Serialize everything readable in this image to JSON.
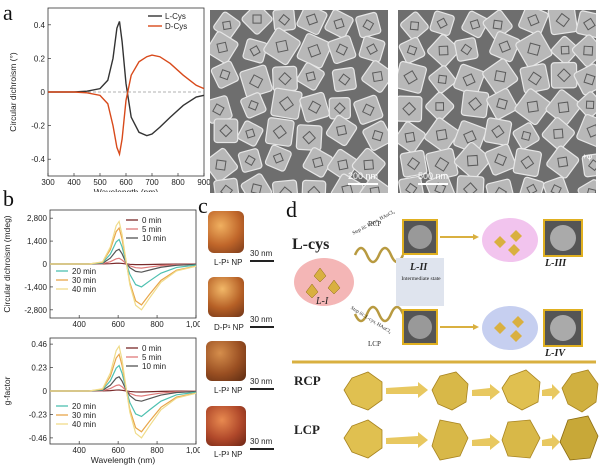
{
  "panels": {
    "a": "a",
    "b": "b",
    "c": "c",
    "d": "d"
  },
  "chart_data": [
    {
      "type": "line",
      "id": "a",
      "xlabel": "Wavelength (nm)",
      "ylabel": "Circular dichroism (°)",
      "xlim": [
        300,
        900
      ],
      "ylim": [
        -0.5,
        0.5
      ],
      "xticks": [
        "300",
        "400",
        "500",
        "600",
        "700",
        "800",
        "900"
      ],
      "yticks": [
        "0.4",
        "0.2",
        "0",
        "-0.2",
        "-0.4"
      ],
      "legend": [
        "L-Cys",
        "D-Cys"
      ],
      "series": [
        {
          "name": "L-Cys",
          "color": "#333333",
          "x": [
            300,
            400,
            450,
            500,
            530,
            550,
            565,
            575,
            585,
            600,
            620,
            650,
            680,
            700,
            730,
            770,
            820,
            870,
            900
          ],
          "y": [
            0.0,
            0.0,
            0.005,
            0.02,
            0.07,
            0.2,
            0.38,
            0.42,
            0.3,
            0.05,
            -0.15,
            -0.24,
            -0.26,
            -0.25,
            -0.21,
            -0.15,
            -0.08,
            -0.03,
            -0.02
          ]
        },
        {
          "name": "D-Cys",
          "color": "#d84a1b",
          "x": [
            300,
            400,
            450,
            500,
            530,
            550,
            565,
            575,
            585,
            600,
            620,
            650,
            680,
            700,
            730,
            770,
            820,
            870,
            900
          ],
          "y": [
            0.0,
            0.0,
            -0.005,
            -0.02,
            -0.07,
            -0.2,
            -0.33,
            -0.37,
            -0.28,
            -0.05,
            0.1,
            0.18,
            0.21,
            0.22,
            0.21,
            0.17,
            0.1,
            0.04,
            0.02
          ]
        }
      ]
    },
    {
      "type": "line",
      "id": "b-top",
      "xlabel": "",
      "ylabel": "Circular dichroism (mdeg)",
      "xlim": [
        250,
        1000
      ],
      "ylim": [
        -3300,
        3300
      ],
      "xticks": [
        "400",
        "600",
        "800",
        "1,000"
      ],
      "yticks": [
        "2,800",
        "1,400",
        "0",
        "-1,400",
        "-2,800"
      ],
      "series": [
        {
          "name": "0 min",
          "color": "#7a2a2a",
          "peak": 50,
          "trough": -40
        },
        {
          "name": "5 min",
          "color": "#e07b7b",
          "peak": 350,
          "trough": -250
        },
        {
          "name": "10 min",
          "color": "#555555",
          "peak": 900,
          "trough": -500
        },
        {
          "name": "20 min",
          "color": "#4dc0b0",
          "peak": 1500,
          "trough": -1400
        },
        {
          "name": "30 min",
          "color": "#e8a64a",
          "peak": 2200,
          "trough": -2500
        },
        {
          "name": "40 min",
          "color": "#f0dc8a",
          "peak": 2600,
          "trough": -2800
        }
      ]
    },
    {
      "type": "line",
      "id": "b-bottom",
      "xlabel": "Wavelength (nm)",
      "ylabel": "g-factor",
      "xlim": [
        250,
        1000
      ],
      "ylim": [
        -0.52,
        0.52
      ],
      "xticks": [
        "400",
        "600",
        "800",
        "1,000"
      ],
      "yticks": [
        "0.46",
        "0.23",
        "0",
        "-0.23",
        "-0.46"
      ],
      "series": [
        {
          "name": "0 min",
          "color": "#7a2a2a",
          "peak": 0.01,
          "trough": -0.01
        },
        {
          "name": "5 min",
          "color": "#e07b7b",
          "peak": 0.06,
          "trough": -0.05
        },
        {
          "name": "10 min",
          "color": "#555555",
          "peak": 0.14,
          "trough": -0.1
        },
        {
          "name": "20 min",
          "color": "#4dc0b0",
          "peak": 0.25,
          "trough": -0.25
        },
        {
          "name": "30 min",
          "color": "#e8a64a",
          "peak": 0.36,
          "trough": -0.4
        },
        {
          "name": "40 min",
          "color": "#f0dc8a",
          "peak": 0.44,
          "trough": -0.46
        }
      ]
    }
  ],
  "legend_b_top_right": [
    "0 min",
    "5 min",
    "10 min"
  ],
  "legend_b_top_left": [
    "20 min",
    "30 min",
    "40 min"
  ],
  "legend_b_bottom_right": [
    "0 min",
    "5 min",
    "10 min"
  ],
  "legend_b_bottom_left": [
    "20 min",
    "30 min",
    "40 min"
  ],
  "sem": {
    "left_scale": "200 nm",
    "right_scale": "500 nm",
    "right_sign": "+φ"
  },
  "c": {
    "items": [
      {
        "label": "L-P¹ NP",
        "scale": "30 nm",
        "color": "#c0662a"
      },
      {
        "label": "D-P¹ NP",
        "scale": "30 nm",
        "color": "#b66026"
      },
      {
        "label": "L-P² NP",
        "scale": "30 nm",
        "color": "#9a4f22"
      },
      {
        "label": "L-P³ NP",
        "scale": "30 nm",
        "color": "#b0482a"
      }
    ]
  },
  "d": {
    "lcys": "L-cys",
    "l1": "L-I",
    "l2": "L-II",
    "intermediate": "Intermediate state",
    "l3": "L-III",
    "l4": "L-IV",
    "rcp": "RCP",
    "lcp": "LCP",
    "step_top": "Step iii: L-cys, HAuCl₄",
    "step_bottom": "Step iii: L-cys, HAuCl₄",
    "rcp_row": "RCP",
    "lcp_row": "LCP"
  }
}
